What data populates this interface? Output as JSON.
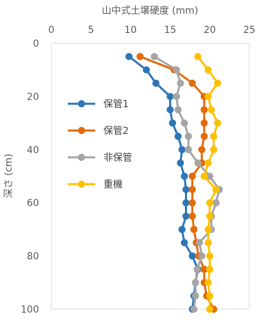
{
  "chart_data": {
    "type": "line",
    "title": "",
    "xlabel": "山中式土壌硬度 (mm)",
    "ylabel": "深さ (cm)",
    "xlim": [
      0,
      25
    ],
    "ylim": [
      0,
      100
    ],
    "x_axis_position": "top",
    "y_inverted": true,
    "x_ticks": [
      "0",
      "5",
      "10",
      "15",
      "20",
      "25"
    ],
    "y_ticks": [
      "0",
      "20",
      "40",
      "60",
      "80",
      "100"
    ],
    "grid": false,
    "legend_position": "left-middle",
    "series": [
      {
        "name": "保管1",
        "color": "#2E75B6",
        "depth": [
          5,
          10,
          15,
          20,
          25,
          30,
          35,
          40,
          45,
          50,
          55,
          60,
          65,
          70,
          75,
          80,
          85,
          90,
          95,
          100
        ],
        "hardness": [
          9.8,
          12.0,
          13.2,
          15.0,
          15.0,
          15.3,
          16.0,
          16.5,
          16.3,
          16.8,
          17.0,
          17.0,
          17.0,
          16.5,
          16.8,
          17.8,
          18.5,
          18.2,
          18.0,
          17.8
        ]
      },
      {
        "name": "保管2",
        "color": "#E26B0A",
        "depth": [
          5,
          10,
          15,
          20,
          25,
          30,
          35,
          40,
          45,
          50,
          55,
          60,
          65,
          70,
          75,
          80,
          85,
          90,
          95,
          100
        ],
        "hardness": [
          11.2,
          15.5,
          17.8,
          19.3,
          19.3,
          19.3,
          19.3,
          19.0,
          19.0,
          17.8,
          17.8,
          17.8,
          17.8,
          18.0,
          18.3,
          18.6,
          19.3,
          19.3,
          19.6,
          20.5
        ]
      },
      {
        "name": "非保管",
        "color": "#A5A5A5",
        "depth": [
          5,
          10,
          15,
          20,
          25,
          30,
          35,
          40,
          45,
          50,
          55,
          60,
          65,
          70,
          75,
          80,
          85,
          90,
          95,
          100
        ],
        "hardness": [
          13.0,
          15.8,
          16.3,
          15.8,
          16.0,
          16.8,
          17.3,
          17.3,
          18.5,
          20.0,
          21.2,
          20.8,
          20.2,
          20.2,
          18.7,
          19.0,
          18.4,
          18.2,
          18.2,
          18.0
        ]
      },
      {
        "name": "重機",
        "color": "#FFC000",
        "depth": [
          5,
          10,
          15,
          20,
          25,
          30,
          35,
          40,
          45,
          50,
          55,
          60,
          65,
          70,
          75,
          80,
          85,
          90,
          95,
          100
        ],
        "hardness": [
          18.5,
          19.8,
          21.0,
          19.8,
          20.2,
          21.0,
          20.5,
          20.5,
          19.8,
          19.3,
          20.8,
          20.0,
          20.0,
          19.8,
          19.8,
          20.0,
          20.0,
          19.8,
          20.0,
          20.0
        ]
      }
    ]
  }
}
